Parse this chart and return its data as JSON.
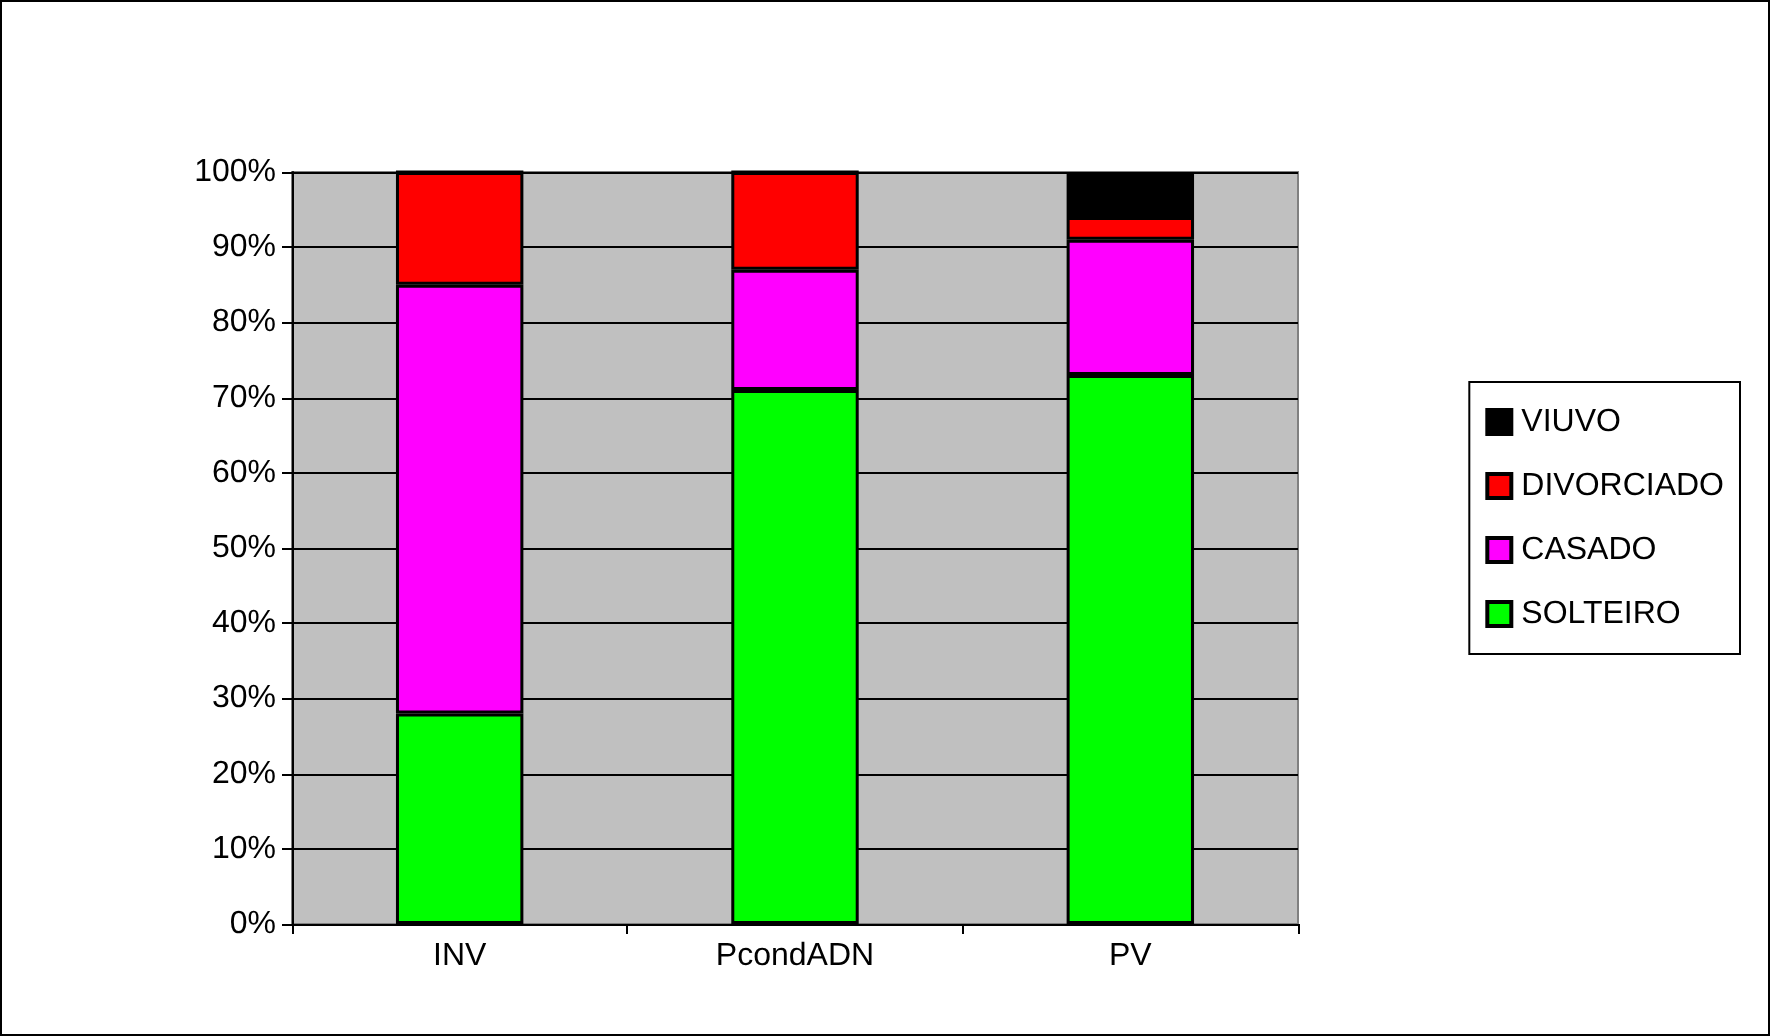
{
  "chart_data": {
    "type": "bar",
    "stacked": true,
    "categories": [
      "INV",
      "PcondADN",
      "PV"
    ],
    "series": [
      {
        "name": "SOLTEIRO",
        "color": "#00ff00",
        "values": [
          28,
          71,
          73
        ]
      },
      {
        "name": "CASADO",
        "color": "#ff00ff",
        "values": [
          57,
          16,
          18
        ]
      },
      {
        "name": "DIVORCIADO",
        "color": "#ff0000",
        "values": [
          15,
          13,
          3
        ]
      },
      {
        "name": "VIUVO",
        "color": "#000000",
        "values": [
          0,
          0,
          6
        ]
      }
    ],
    "ylim": [
      0,
      100
    ],
    "yticks": [
      {
        "value": 0,
        "label": "0%"
      },
      {
        "value": 10,
        "label": "10%"
      },
      {
        "value": 20,
        "label": "20%"
      },
      {
        "value": 30,
        "label": "30%"
      },
      {
        "value": 40,
        "label": "40%"
      },
      {
        "value": 50,
        "label": "50%"
      },
      {
        "value": 60,
        "label": "60%"
      },
      {
        "value": 70,
        "label": "70%"
      },
      {
        "value": 80,
        "label": "80%"
      },
      {
        "value": 90,
        "label": "90%"
      },
      {
        "value": 100,
        "label": "100%"
      }
    ],
    "grid": "y",
    "legend": "right"
  }
}
